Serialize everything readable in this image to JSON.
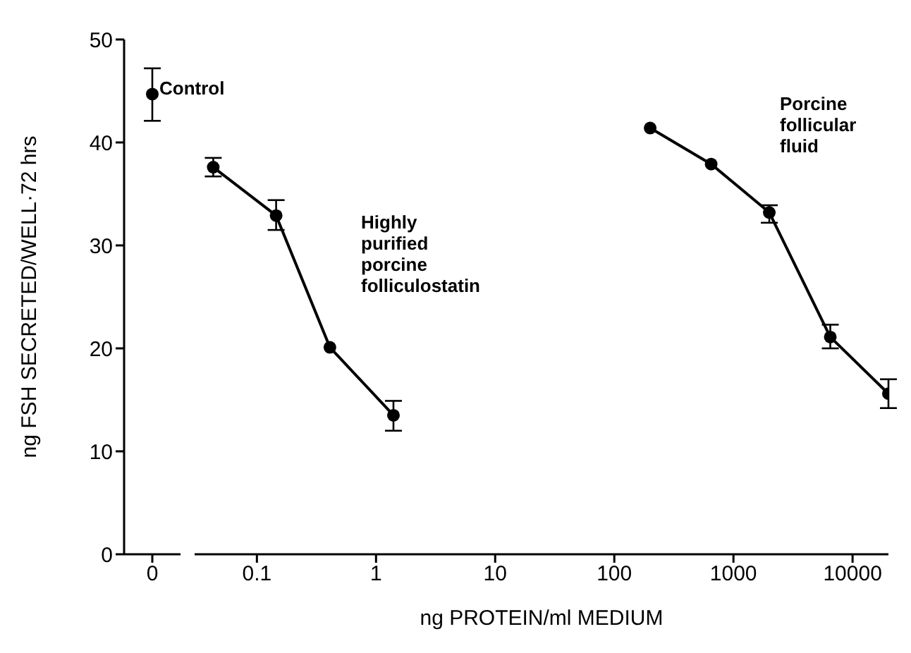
{
  "chart_data": [
    {
      "type": "scatter",
      "ylabel": "ng FSH SECRETED/WELL·72 hrs",
      "categories": [
        "0"
      ],
      "ylim": [
        0,
        50
      ],
      "yticks": [
        0,
        10,
        20,
        30,
        40,
        50
      ],
      "marker": "circle",
      "series": [
        {
          "name": "Control",
          "color": "#000000",
          "values": [
            44.7
          ],
          "errors": [
            [
              42.1,
              47.2
            ]
          ]
        }
      ]
    },
    {
      "type": "line",
      "xlabel": "ng PROTEIN/ml MEDIUM",
      "log": "x",
      "xlim": [
        0.03,
        20000
      ],
      "xticks": [
        0.1,
        1,
        10,
        100,
        1000,
        10000
      ],
      "ylim": [
        0,
        50
      ],
      "tick_labels": "x",
      "marker": "circle",
      "line_style": "solid",
      "series": [
        {
          "name": "Highly purified porcine folliculostatin",
          "color": "#000000",
          "x": [
            0.043,
            0.145,
            0.41,
            1.4
          ],
          "values": [
            37.6,
            32.9,
            20.1,
            13.5
          ],
          "errors": [
            [
              36.7,
              38.5
            ],
            [
              31.5,
              34.4
            ],
            null,
            [
              12.0,
              14.9
            ]
          ]
        },
        {
          "name": "Porcine follicular fluid",
          "color": "#000000",
          "x": [
            200,
            650,
            2000,
            6500,
            20000
          ],
          "values": [
            41.4,
            37.9,
            33.2,
            21.1,
            15.6
          ],
          "errors": [
            null,
            null,
            [
              32.2,
              33.9
            ],
            [
              20.0,
              22.3
            ],
            [
              14.2,
              17.0
            ]
          ]
        }
      ]
    }
  ]
}
